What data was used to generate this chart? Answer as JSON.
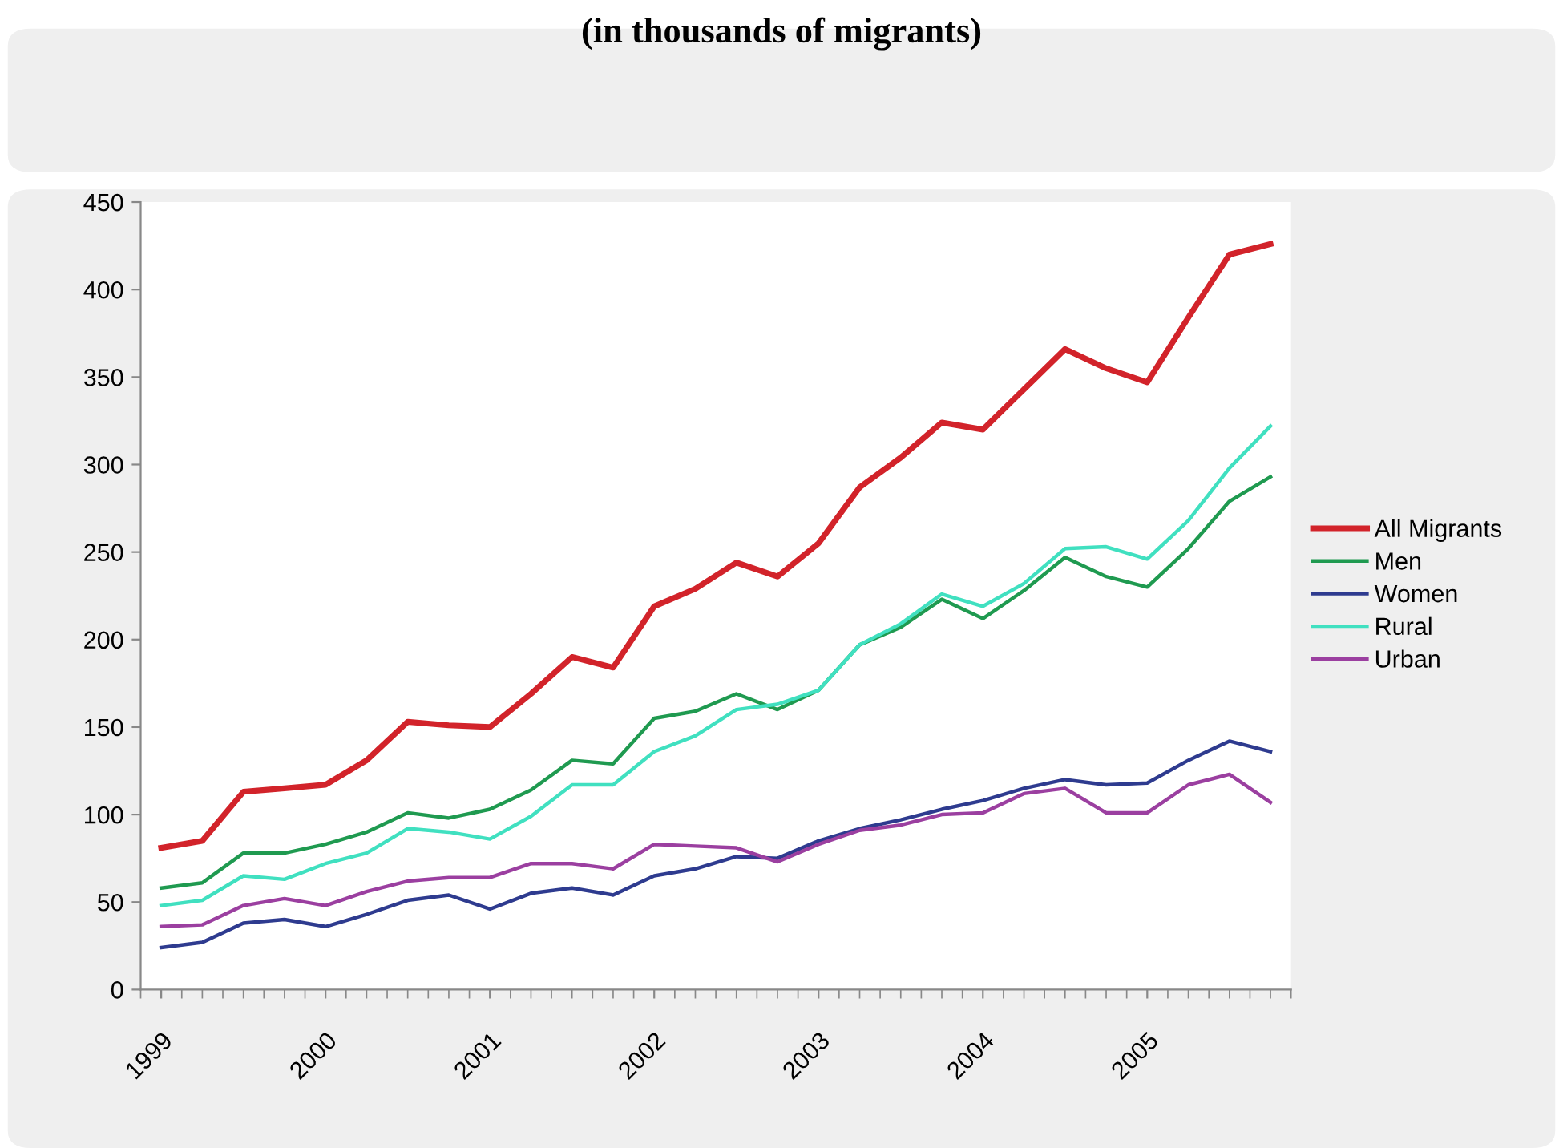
{
  "chart_data": {
    "type": "line",
    "title": "(in thousands of migrants)",
    "categories": [
      "1999",
      null,
      null,
      null,
      "2000",
      null,
      null,
      null,
      "2001",
      null,
      null,
      null,
      "2002",
      null,
      null,
      null,
      "2003",
      null,
      null,
      null,
      "2004",
      null,
      null,
      null,
      "2005",
      null,
      null,
      null
    ],
    "series": [
      {
        "name": "All Migrants",
        "color": "#d2232a",
        "values": [
          81,
          85,
          113,
          115,
          117,
          131,
          153,
          151,
          150,
          169,
          190,
          184,
          219,
          229,
          244,
          236,
          255,
          287,
          304,
          324,
          320,
          343,
          366,
          355,
          347,
          384,
          420,
          426
        ]
      },
      {
        "name": "Men",
        "color": "#1f9a50",
        "values": [
          58,
          61,
          78,
          78,
          83,
          90,
          101,
          98,
          103,
          114,
          131,
          129,
          155,
          159,
          169,
          160,
          171,
          197,
          207,
          223,
          212,
          228,
          247,
          236,
          230,
          252,
          279,
          293
        ]
      },
      {
        "name": "Women",
        "color": "#2e3b8f",
        "values": [
          24,
          27,
          38,
          40,
          36,
          43,
          51,
          54,
          46,
          55,
          58,
          54,
          65,
          69,
          76,
          75,
          85,
          92,
          97,
          103,
          108,
          115,
          120,
          117,
          118,
          131,
          142,
          136
        ]
      },
      {
        "name": "Rural",
        "color": "#40e0c0",
        "values": [
          48,
          51,
          65,
          63,
          72,
          78,
          92,
          90,
          86,
          99,
          117,
          117,
          136,
          145,
          160,
          163,
          171,
          197,
          209,
          226,
          219,
          232,
          252,
          253,
          246,
          268,
          298,
          322
        ]
      },
      {
        "name": "Urban",
        "color": "#9b3fa0",
        "values": [
          36,
          37,
          48,
          52,
          48,
          56,
          62,
          64,
          64,
          72,
          72,
          69,
          83,
          82,
          81,
          73,
          83,
          91,
          94,
          100,
          101,
          112,
          115,
          101,
          101,
          117,
          123,
          107
        ]
      }
    ],
    "ylim": [
      0,
      450
    ],
    "yticks": [
      0,
      50,
      100,
      150,
      200,
      250,
      300,
      350,
      400,
      450
    ],
    "grid": false,
    "legend": "right",
    "marker": "none",
    "line_style": "solid"
  }
}
